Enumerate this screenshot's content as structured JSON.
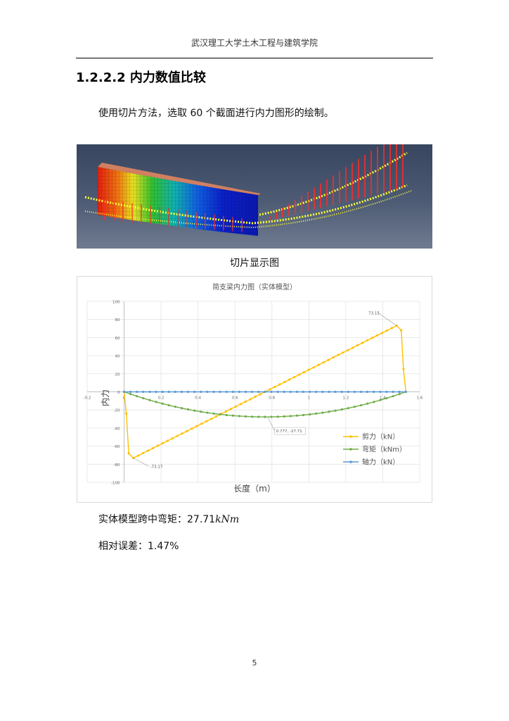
{
  "header": {
    "text": "武汉理工大学土木工程与建筑学院"
  },
  "section": {
    "heading": "1.2.2.2 内力数值比较"
  },
  "intro": {
    "text": "使用切片方法，选取 60 个截面进行内力图形的绘制。"
  },
  "figure": {
    "caption": "切片显示图",
    "colors": {
      "background": "#3d4a63",
      "arrows": "#ff2a2a",
      "labels": "#ffff33"
    }
  },
  "chart_data": {
    "type": "line",
    "title": "简支梁内力图（实体模型）",
    "xlabel": "长度（m）",
    "ylabel": "内力",
    "xlim": [
      -0.2,
      1.6
    ],
    "ylim": [
      -100,
      100
    ],
    "xticks": [
      "-0.2",
      "0",
      "0.2",
      "0.4",
      "0.6",
      "0.8",
      "1",
      "1.2",
      "1.4",
      "1.6"
    ],
    "yticks": [
      "100",
      "80",
      "60",
      "40",
      "20",
      "0",
      "-20",
      "-40",
      "-60",
      "-80",
      "-100"
    ],
    "grid": true,
    "legend_position": "bottom-right",
    "series": [
      {
        "name": "剪力（kN）",
        "color": "#ffc000",
        "x": [
          0.0,
          0.012,
          0.025,
          0.05,
          1.475,
          1.5,
          1.512,
          1.525
        ],
        "y": [
          0,
          -24,
          -68,
          -73.17,
          73.15,
          68,
          25,
          0
        ],
        "linear_segment": {
          "x0": 0.05,
          "y0": -73.17,
          "x1": 1.475,
          "y1": 73.15,
          "points": 55
        }
      },
      {
        "name": "弯矩（kNm）",
        "color": "#70ad47",
        "parabola": {
          "x0": 0.0,
          "x1": 1.525,
          "ymin": -27.71,
          "points": 45
        }
      },
      {
        "name": "轴力（kN）",
        "color": "#5b9bd5",
        "constant": {
          "x0": 0.0,
          "x1": 1.525,
          "y": 0,
          "points": 45
        }
      }
    ],
    "annotations": [
      {
        "text": "73.15",
        "x": 1.475,
        "y": 73.15
      },
      {
        "text": "0.777, -27.71",
        "x": 0.777,
        "y": -27.71
      },
      {
        "text": "-73.17",
        "x": 0.05,
        "y": -73.17
      }
    ]
  },
  "results": {
    "midspan_label": "实体模型跨中弯矩：",
    "midspan_value": "27.71",
    "midspan_unit": "kNm",
    "error_label": "相对误差：",
    "error_value": "1.47%"
  },
  "page": {
    "number": "5"
  }
}
